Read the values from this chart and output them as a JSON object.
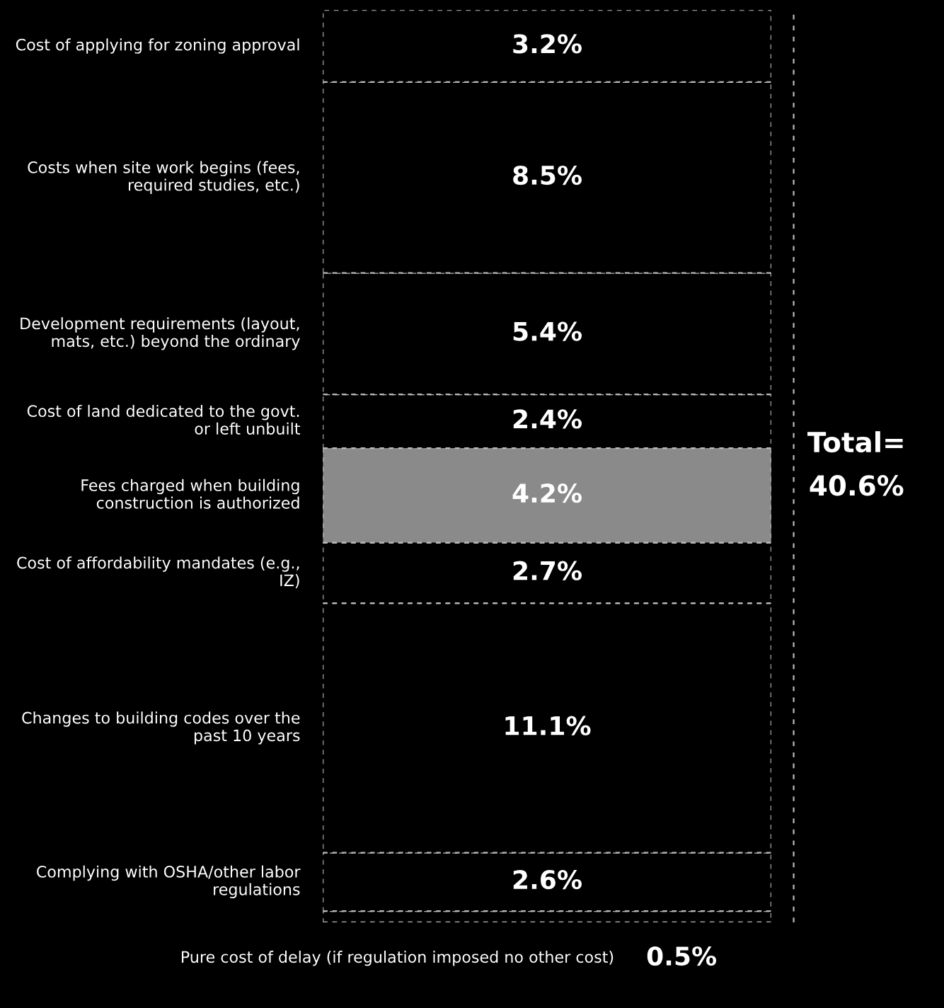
{
  "chart_data": {
    "type": "bar",
    "stacked": true,
    "categories": [
      null
    ],
    "series": [
      {
        "name": "Pure cost of delay (if regulation imposed no other cost)",
        "color": "#000000",
        "values": [
          0.5
        ],
        "value_labels": [
          "0.5%"
        ]
      },
      {
        "name": "Complying with OSHA/other labor regulations",
        "color": "#000000",
        "values": [
          2.6
        ],
        "value_labels": [
          "2.6%"
        ]
      },
      {
        "name": "Changes to building codes over the past 10 years",
        "color": "#000000",
        "values": [
          11.1
        ],
        "value_labels": [
          "11.1%"
        ]
      },
      {
        "name": "Cost of affordability mandates (e.g., IZ)",
        "color": "#000000",
        "values": [
          2.7
        ],
        "value_labels": [
          "2.7%"
        ]
      },
      {
        "name": "Fees charged when building construction is authorized",
        "color": "#8a8a8a",
        "values": [
          4.2
        ],
        "value_labels": [
          "4.2%"
        ]
      },
      {
        "name": "Cost of land dedicated to the govt. or left unbuilt",
        "color": "#000000",
        "values": [
          2.4
        ],
        "value_labels": [
          "2.4%"
        ]
      },
      {
        "name": "Development requirements (layout, mats, etc.) beyond the ordinary",
        "color": "#000000",
        "values": [
          5.4
        ],
        "value_labels": [
          "5.4%"
        ]
      },
      {
        "name": "Costs when site work begins (fees, required studies, etc.)",
        "color": "#000000",
        "values": [
          8.5
        ],
        "value_labels": [
          "8.5%"
        ]
      },
      {
        "name": "Cost of applying for zoning approval",
        "color": "#000000",
        "values": [
          3.2
        ],
        "value_labels": [
          "3.2%"
        ]
      }
    ],
    "annotations": [
      "Total=\n40.6%"
    ]
  }
}
